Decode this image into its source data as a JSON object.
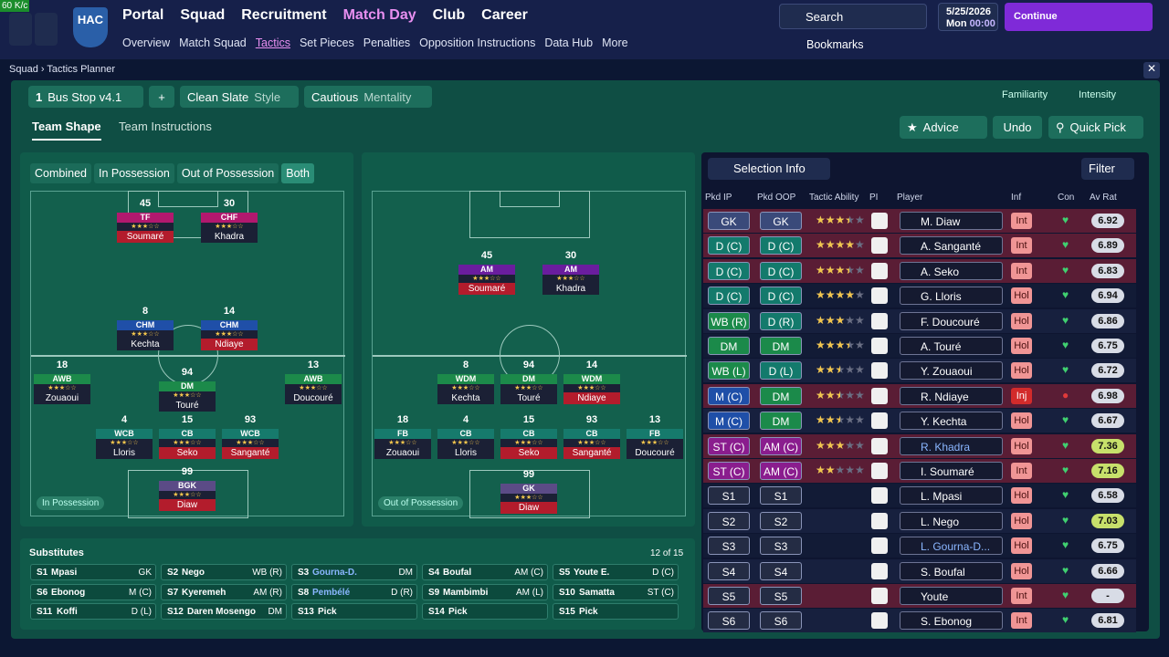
{
  "top": {
    "fps": "60 K/c",
    "badge": "HAC",
    "main_nav": [
      "Portal",
      "Squad",
      "Recruitment",
      "Match Day",
      "Club",
      "Career"
    ],
    "sub_nav": [
      "Overview",
      "Match Squad",
      "Tactics",
      "Set Pieces",
      "Penalties",
      "Opposition Instructions",
      "Data Hub",
      "More"
    ],
    "search": "Search",
    "date": "5/25/2026",
    "day": "Mon",
    "time": "00:00",
    "continue": "Continue",
    "bookmarks": "Bookmarks"
  },
  "breadcrumb": [
    "Squad",
    "Tactics Planner"
  ],
  "toolbar": {
    "tactic_number": "1",
    "tactic": "Bus Stop v4.1",
    "add": "+",
    "style": "Clean Slate",
    "style_label": "Style",
    "mentality": "Cautious",
    "mentality_label": "Mentality",
    "familiarity": "Familiarity",
    "intensity": "Intensity"
  },
  "tabs": [
    "Team Shape",
    "Team Instructions"
  ],
  "actions": [
    "Advice",
    "Undo",
    "Quick Pick"
  ],
  "pitch_filter": [
    "Combined",
    "In Possession",
    "Out of Possession",
    "Both"
  ],
  "pitches": [
    {
      "label": "In Possession",
      "players": [
        {
          "number": "45",
          "role": "TF",
          "name": "Soumaré"
        },
        {
          "number": "30",
          "role": "CHF",
          "name": "Khadra"
        },
        {
          "number": "8",
          "role": "CHM",
          "name": "Kechta"
        },
        {
          "number": "14",
          "role": "CHM",
          "name": "Ndiaye"
        },
        {
          "number": "18",
          "role": "AWB",
          "name": "Zouaoui"
        },
        {
          "number": "94",
          "role": "DM",
          "name": "Touré"
        },
        {
          "number": "13",
          "role": "AWB",
          "name": "Doucouré"
        },
        {
          "number": "4",
          "role": "WCB",
          "name": "Lloris"
        },
        {
          "number": "15",
          "role": "CB",
          "name": "Seko"
        },
        {
          "number": "93",
          "role": "WCB",
          "name": "Sanganté"
        },
        {
          "number": "99",
          "role": "BGK",
          "name": "Diaw"
        }
      ]
    },
    {
      "label": "Out of Possession",
      "players": [
        {
          "number": "45",
          "role": "AM",
          "name": "Soumaré"
        },
        {
          "number": "30",
          "role": "AM",
          "name": "Khadra"
        },
        {
          "number": "8",
          "role": "WDM",
          "name": "Kechta"
        },
        {
          "number": "94",
          "role": "DM",
          "name": "Touré"
        },
        {
          "number": "14",
          "role": "WDM",
          "name": "Ndiaye"
        },
        {
          "number": "18",
          "role": "FB",
          "name": "Zouaoui"
        },
        {
          "number": "4",
          "role": "CB",
          "name": "Lloris"
        },
        {
          "number": "15",
          "role": "CB",
          "name": "Seko"
        },
        {
          "number": "93",
          "role": "CB",
          "name": "Sanganté"
        },
        {
          "number": "13",
          "role": "FB",
          "name": "Doucouré"
        },
        {
          "number": "99",
          "role": "GK",
          "name": "Diaw"
        }
      ]
    }
  ],
  "selection": {
    "title": "Selection Info",
    "filter": "Filter",
    "columns": [
      "Pkd IP",
      "Pkd OOP",
      "Tactic Ability",
      "PI",
      "Player",
      "Inf",
      "Con",
      "Av Rat"
    ],
    "rows": [
      {
        "ip": "GK",
        "oop": "GK",
        "ability": 3.5,
        "player": "M. Diaw",
        "inf": "Int",
        "rating": "6.92"
      },
      {
        "ip": "D (C)",
        "oop": "D (C)",
        "ability": 4,
        "player": "A. Sanganté",
        "inf": "Int",
        "rating": "6.89"
      },
      {
        "ip": "D (C)",
        "oop": "D (C)",
        "ability": 3.5,
        "player": "A. Seko",
        "inf": "Int",
        "rating": "6.83"
      },
      {
        "ip": "D (C)",
        "oop": "D (C)",
        "ability": 4,
        "player": "G. Lloris",
        "inf": "Hol",
        "rating": "6.94"
      },
      {
        "ip": "WB (R)",
        "oop": "D (R)",
        "ability": 3,
        "player": "F. Doucouré",
        "inf": "Hol",
        "rating": "6.86"
      },
      {
        "ip": "DM",
        "oop": "DM",
        "ability": 3.5,
        "player": "A. Touré",
        "inf": "Hol",
        "rating": "6.75"
      },
      {
        "ip": "WB (L)",
        "oop": "D (L)",
        "ability": 2.5,
        "player": "Y. Zouaoui",
        "inf": "Hol",
        "rating": "6.72"
      },
      {
        "ip": "M (C)",
        "oop": "DM",
        "ability": 2.5,
        "player": "R. Ndiaye",
        "inf": "Inj",
        "rating": "6.98"
      },
      {
        "ip": "M (C)",
        "oop": "DM",
        "ability": 2.5,
        "player": "Y. Kechta",
        "inf": "Hol",
        "rating": "6.67"
      },
      {
        "ip": "ST (C)",
        "oop": "AM (C)",
        "ability": 3,
        "player": "R. Khadra",
        "inf": "Hol",
        "rating": "7.36"
      },
      {
        "ip": "ST (C)",
        "oop": "AM (C)",
        "ability": 2,
        "player": "I. Soumaré",
        "inf": "Int",
        "rating": "7.16"
      },
      {
        "ip": "S1",
        "oop": "S1",
        "ability": null,
        "player": "L. Mpasi",
        "inf": "Hol",
        "rating": "6.58"
      },
      {
        "ip": "S2",
        "oop": "S2",
        "ability": null,
        "player": "L. Nego",
        "inf": "Hol",
        "rating": "7.03"
      },
      {
        "ip": "S3",
        "oop": "S3",
        "ability": null,
        "player": "L. Gourna-D...",
        "inf": "Hol",
        "rating": "6.75"
      },
      {
        "ip": "S4",
        "oop": "S4",
        "ability": null,
        "player": "S. Boufal",
        "inf": "Hol",
        "rating": "6.66"
      },
      {
        "ip": "S5",
        "oop": "S5",
        "ability": null,
        "player": "Youte",
        "inf": "Int",
        "rating": "-"
      },
      {
        "ip": "S6",
        "oop": "S6",
        "ability": null,
        "player": "S. Ebonog",
        "inf": "Int",
        "rating": "6.81"
      }
    ]
  },
  "substitutes": {
    "title": "Substitutes",
    "count": "12 of 15",
    "slots": [
      {
        "slot": "S1",
        "name": "Mpasi",
        "pos": "GK"
      },
      {
        "slot": "S2",
        "name": "Nego",
        "pos": "WB (R)"
      },
      {
        "slot": "S3",
        "name": "Gourna-D.",
        "pos": "DM"
      },
      {
        "slot": "S4",
        "name": "Boufal",
        "pos": "AM (C)"
      },
      {
        "slot": "S5",
        "name": "Youte E.",
        "pos": "D (C)"
      },
      {
        "slot": "S6",
        "name": "Ebonog",
        "pos": "M (C)"
      },
      {
        "slot": "S7",
        "name": "Kyeremeh",
        "pos": "AM (R)"
      },
      {
        "slot": "S8",
        "name": "Pembélé",
        "pos": "D (R)"
      },
      {
        "slot": "S9",
        "name": "Mambimbi",
        "pos": "AM (L)"
      },
      {
        "slot": "S10",
        "name": "Samatta",
        "pos": "ST (C)"
      },
      {
        "slot": "S11",
        "name": "Koffi",
        "pos": "D (L)"
      },
      {
        "slot": "S12",
        "name": "Daren Mosengo",
        "pos": "DM"
      },
      {
        "slot": "S13",
        "name": "Pick",
        "pos": null
      },
      {
        "slot": "S14",
        "name": "Pick",
        "pos": null
      },
      {
        "slot": "S15",
        "name": "Pick",
        "pos": null
      }
    ]
  }
}
